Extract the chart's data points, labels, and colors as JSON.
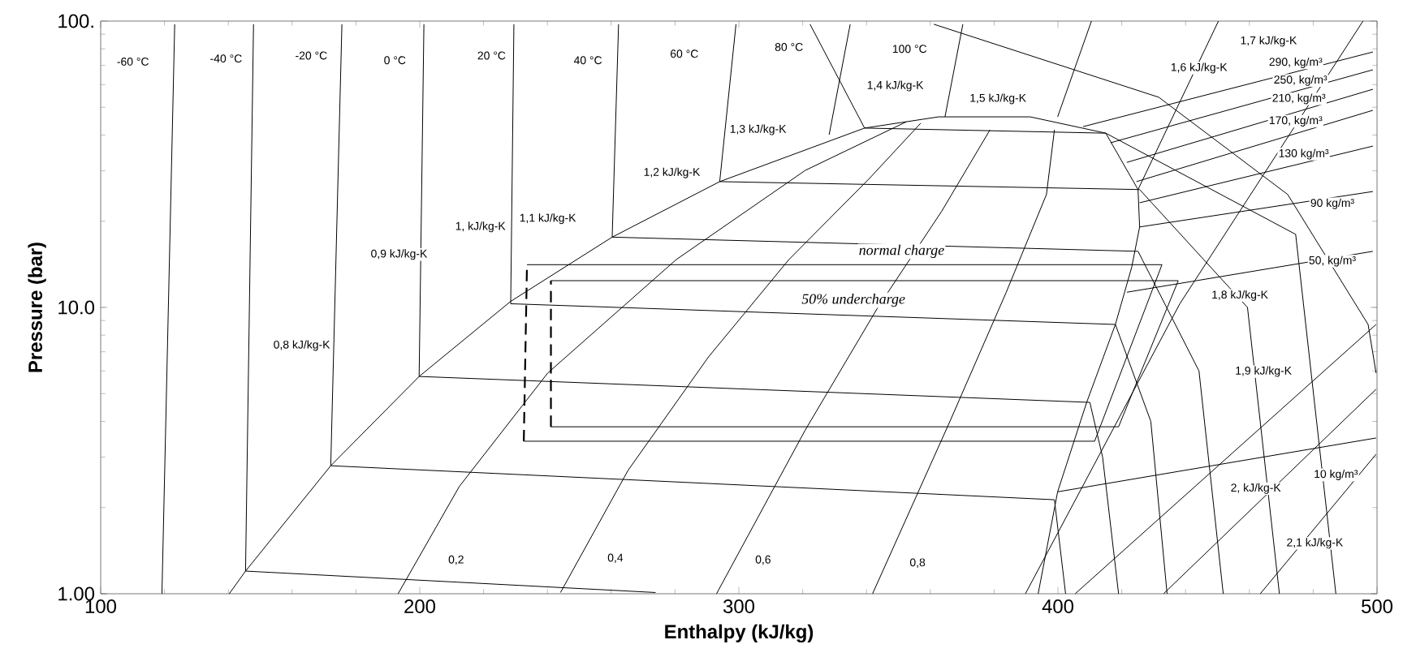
{
  "chart_data": {
    "type": "line",
    "xlabel": "Enthalpy (kJ/kg)",
    "ylabel": "Pressure (bar)",
    "log": "y",
    "grid": false,
    "marker": "none",
    "line_style": "solid",
    "xlim": [
      100,
      500
    ],
    "xticks": [
      100,
      200,
      300,
      400,
      500
    ],
    "ylim": [
      1,
      100
    ],
    "yticks": [
      {
        "value": 1,
        "label": "1.00"
      },
      {
        "value": 10,
        "label": "10.0"
      },
      {
        "value": 100,
        "label": "100."
      }
    ],
    "series": [
      {
        "color": "#000000",
        "x": [
          140.3,
          145.4,
          172.1,
          199.8,
          228.5,
          260.3,
          294.0,
          339.4,
          362.6,
          391.3,
          415.0,
          425.1,
          425.6,
          423.1,
          418.0,
          409.0,
          399.9,
          393.8
        ],
        "values": [
          1.0,
          1.2,
          2.8,
          5.74,
          10.5,
          17.6,
          27.5,
          42.3,
          46.3,
          46.3,
          40.6,
          25.8,
          19.1,
          13.8,
          8.72,
          4.66,
          2.27,
          1.0
        ]
      },
      {
        "color": "#000000",
        "x": [
          119.2,
          123.2
        ],
        "values": [
          1.0,
          97.5
        ]
      },
      {
        "color": "#000000",
        "x": [
          147.9,
          145.4,
          273.9
        ],
        "values": [
          97.5,
          1.2,
          1.01
        ]
      },
      {
        "color": "#000000",
        "x": [
          175.6,
          172.1,
          398.9,
          402.4
        ],
        "values": [
          97.5,
          2.8,
          2.13,
          1.0
        ]
      },
      {
        "color": "#000000",
        "x": [
          201.3,
          199.8,
          410.0,
          414.0,
          419.0
        ],
        "values": [
          97.5,
          5.74,
          4.66,
          3.0,
          1.0
        ]
      },
      {
        "color": "#000000",
        "x": [
          229.5,
          228.5,
          418.0,
          429.1,
          434.2
        ],
        "values": [
          97.5,
          10.3,
          8.72,
          4.0,
          1.0
        ]
      },
      {
        "color": "#000000",
        "x": [
          262.3,
          260.3,
          425.1,
          444.2,
          451.8
        ],
        "values": [
          97.5,
          17.6,
          15.7,
          6.0,
          1.0
        ]
      },
      {
        "color": "#000000",
        "x": [
          299.1,
          294.0,
          425.6,
          459.4,
          469.4
        ],
        "values": [
          97.5,
          27.5,
          25.8,
          10.0,
          1.0
        ]
      },
      {
        "color": "#000000",
        "x": [
          322.3,
          339.4,
          415.0,
          474.5,
          487.1
        ],
        "values": [
          97.5,
          42.3,
          40.6,
          18.0,
          1.0
        ]
      },
      {
        "color": "#000000",
        "x": [
          361.1,
          431.6,
          472.0,
          497.2,
          499.7
        ],
        "values": [
          97.5,
          54.2,
          24.8,
          8.72,
          5.9
        ]
      },
      {
        "color": "#000000",
        "x": [
          193.2,
          212.4,
          240.1,
          280.4,
          320.8,
          352.5
        ],
        "values": [
          1.0,
          2.37,
          5.9,
          14.7,
          30.1,
          44.5
        ]
      },
      {
        "color": "#000000",
        "x": [
          244.1,
          265.3,
          290.5,
          315.7,
          340.9,
          357.0
        ],
        "values": [
          1.01,
          2.7,
          6.72,
          14.7,
          28.2,
          44.0
        ]
      },
      {
        "color": "#000000",
        "x": [
          293.0,
          320.8,
          343.4,
          363.6,
          378.7
        ],
        "values": [
          1.0,
          3.73,
          9.93,
          21.7,
          41.7
        ]
      },
      {
        "color": "#000000",
        "x": [
          341.9,
          366.1,
          383.8,
          396.4,
          398.9
        ],
        "values": [
          1.0,
          3.99,
          11.3,
          24.8,
          41.7
        ]
      },
      {
        "color": "#000000",
        "x": [
          334.9,
          328.3
        ],
        "values": [
          97.5,
          40.1
        ]
      },
      {
        "color": "#000000",
        "x": [
          370.2,
          364.6
        ],
        "values": [
          97.5,
          46.3
        ]
      },
      {
        "color": "#000000",
        "x": [
          410.5,
          399.9
        ],
        "values": [
          100,
          46.3
        ]
      },
      {
        "color": "#000000",
        "x": [
          450.3,
          425.1
        ],
        "values": [
          100,
          25.8
        ]
      },
      {
        "color": "#000000",
        "x": [
          389.8,
          438.2,
          495.6
        ],
        "values": [
          1.0,
          10.3,
          100
        ]
      },
      {
        "color": "#000000",
        "x": [
          405.4,
          499.7
        ],
        "values": [
          1.0,
          8.72
        ]
      },
      {
        "color": "#000000",
        "x": [
          433.1,
          499.7
        ],
        "values": [
          1.0,
          5.18
        ]
      },
      {
        "color": "#000000",
        "x": [
          463.4,
          499.7
        ],
        "values": [
          1.0,
          3.07
        ]
      },
      {
        "color": "#000000",
        "x": [
          407.9,
          498.7
        ],
        "values": [
          42.8,
          78.0
        ]
      },
      {
        "color": "#000000",
        "x": [
          416.5,
          498.7
        ],
        "values": [
          37.6,
          67.6
        ]
      },
      {
        "color": "#000000",
        "x": [
          421.6,
          498.7
        ],
        "values": [
          32.1,
          57.8
        ]
      },
      {
        "color": "#000000",
        "x": [
          424.6,
          498.7
        ],
        "values": [
          27.5,
          48.8
        ]
      },
      {
        "color": "#000000",
        "x": [
          425.6,
          498.7
        ],
        "values": [
          23.2,
          36.6
        ]
      },
      {
        "color": "#000000",
        "x": [
          425.6,
          498.7
        ],
        "values": [
          19.1,
          25.4
        ]
      },
      {
        "color": "#000000",
        "x": [
          421.6,
          498.7
        ],
        "values": [
          11.3,
          15.7
        ]
      },
      {
        "color": "#000000",
        "x": [
          399.9,
          499.7
        ],
        "values": [
          2.27,
          3.5
        ]
      },
      {
        "color": "#000000",
        "x": [
          233.6,
          432.6,
          411.5,
          232.6
        ],
        "values": [
          14.1,
          14.1,
          3.41,
          3.41
        ]
      },
      {
        "color": "#000000",
        "line_style": "dashed",
        "x": [
          232.6,
          233.6
        ],
        "values": [
          3.41,
          14.1
        ]
      },
      {
        "color": "#000000",
        "x": [
          241.1,
          437.7,
          419.0,
          241.1
        ],
        "values": [
          12.4,
          12.4,
          3.83,
          3.83
        ]
      },
      {
        "color": "#000000",
        "line_style": "dashed",
        "x": [
          241.1,
          241.1
        ],
        "values": [
          3.83,
          12.4
        ]
      }
    ],
    "annotations": [
      "-60  °C",
      "-40  °C",
      "-20  °C",
      "0  °C",
      "20  °C",
      "40  °C",
      "60  °C",
      "80  °C",
      "100  °C",
      "0,8 kJ/kg-K",
      "0,9 kJ/kg-K",
      "1, kJ/kg-K",
      "1,1 kJ/kg-K",
      "1,2 kJ/kg-K",
      "1,3 kJ/kg-K",
      "1,4 kJ/kg-K",
      "1,5 kJ/kg-K",
      "1,6 kJ/kg-K",
      "1,7 kJ/kg-K",
      "1,8 kJ/kg-K",
      "1,9 kJ/kg-K",
      "2, kJ/kg-K",
      "2,1 kJ/kg-K",
      "290, kg/m³",
      "250, kg/m³",
      "210, kg/m³",
      "170, kg/m³",
      "130  kg/m³",
      "90  kg/m³",
      "50, kg/m³",
      "10  kg/m³",
      "0,2",
      "0,4",
      "0,6",
      "0,8",
      "normal charge",
      "50% undercharge"
    ]
  }
}
